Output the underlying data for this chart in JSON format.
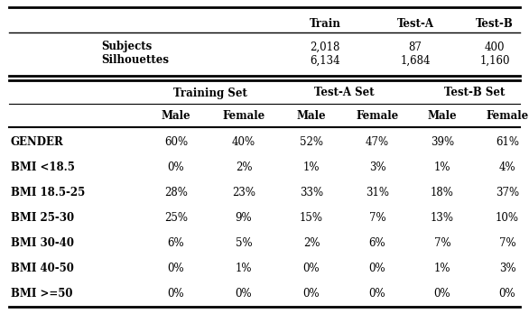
{
  "top_table": {
    "headers": [
      "",
      "Train",
      "Test-A",
      "Test-B"
    ],
    "rows": [
      [
        "Subjects",
        "2,018",
        "87",
        "400"
      ],
      [
        "Silhouettes",
        "6,134",
        "1,684",
        "1,160"
      ]
    ]
  },
  "bottom_table": {
    "rows": [
      [
        "GENDER",
        "60%",
        "40%",
        "52%",
        "47%",
        "39%",
        "61%"
      ],
      [
        "BMI <18.5",
        "0%",
        "2%",
        "1%",
        "3%",
        "1%",
        "4%"
      ],
      [
        "BMI 18.5-25",
        "28%",
        "23%",
        "33%",
        "31%",
        "18%",
        "37%"
      ],
      [
        "BMI 25-30",
        "25%",
        "9%",
        "15%",
        "7%",
        "13%",
        "10%"
      ],
      [
        "BMI 30-40",
        "6%",
        "5%",
        "2%",
        "6%",
        "7%",
        "7%"
      ],
      [
        "BMI 40-50",
        "0%",
        "1%",
        "0%",
        "0%",
        "1%",
        "3%"
      ],
      [
        "BMI >=50",
        "0%",
        "0%",
        "0%",
        "0%",
        "0%",
        "0%"
      ]
    ]
  },
  "bg_color": "#ffffff"
}
